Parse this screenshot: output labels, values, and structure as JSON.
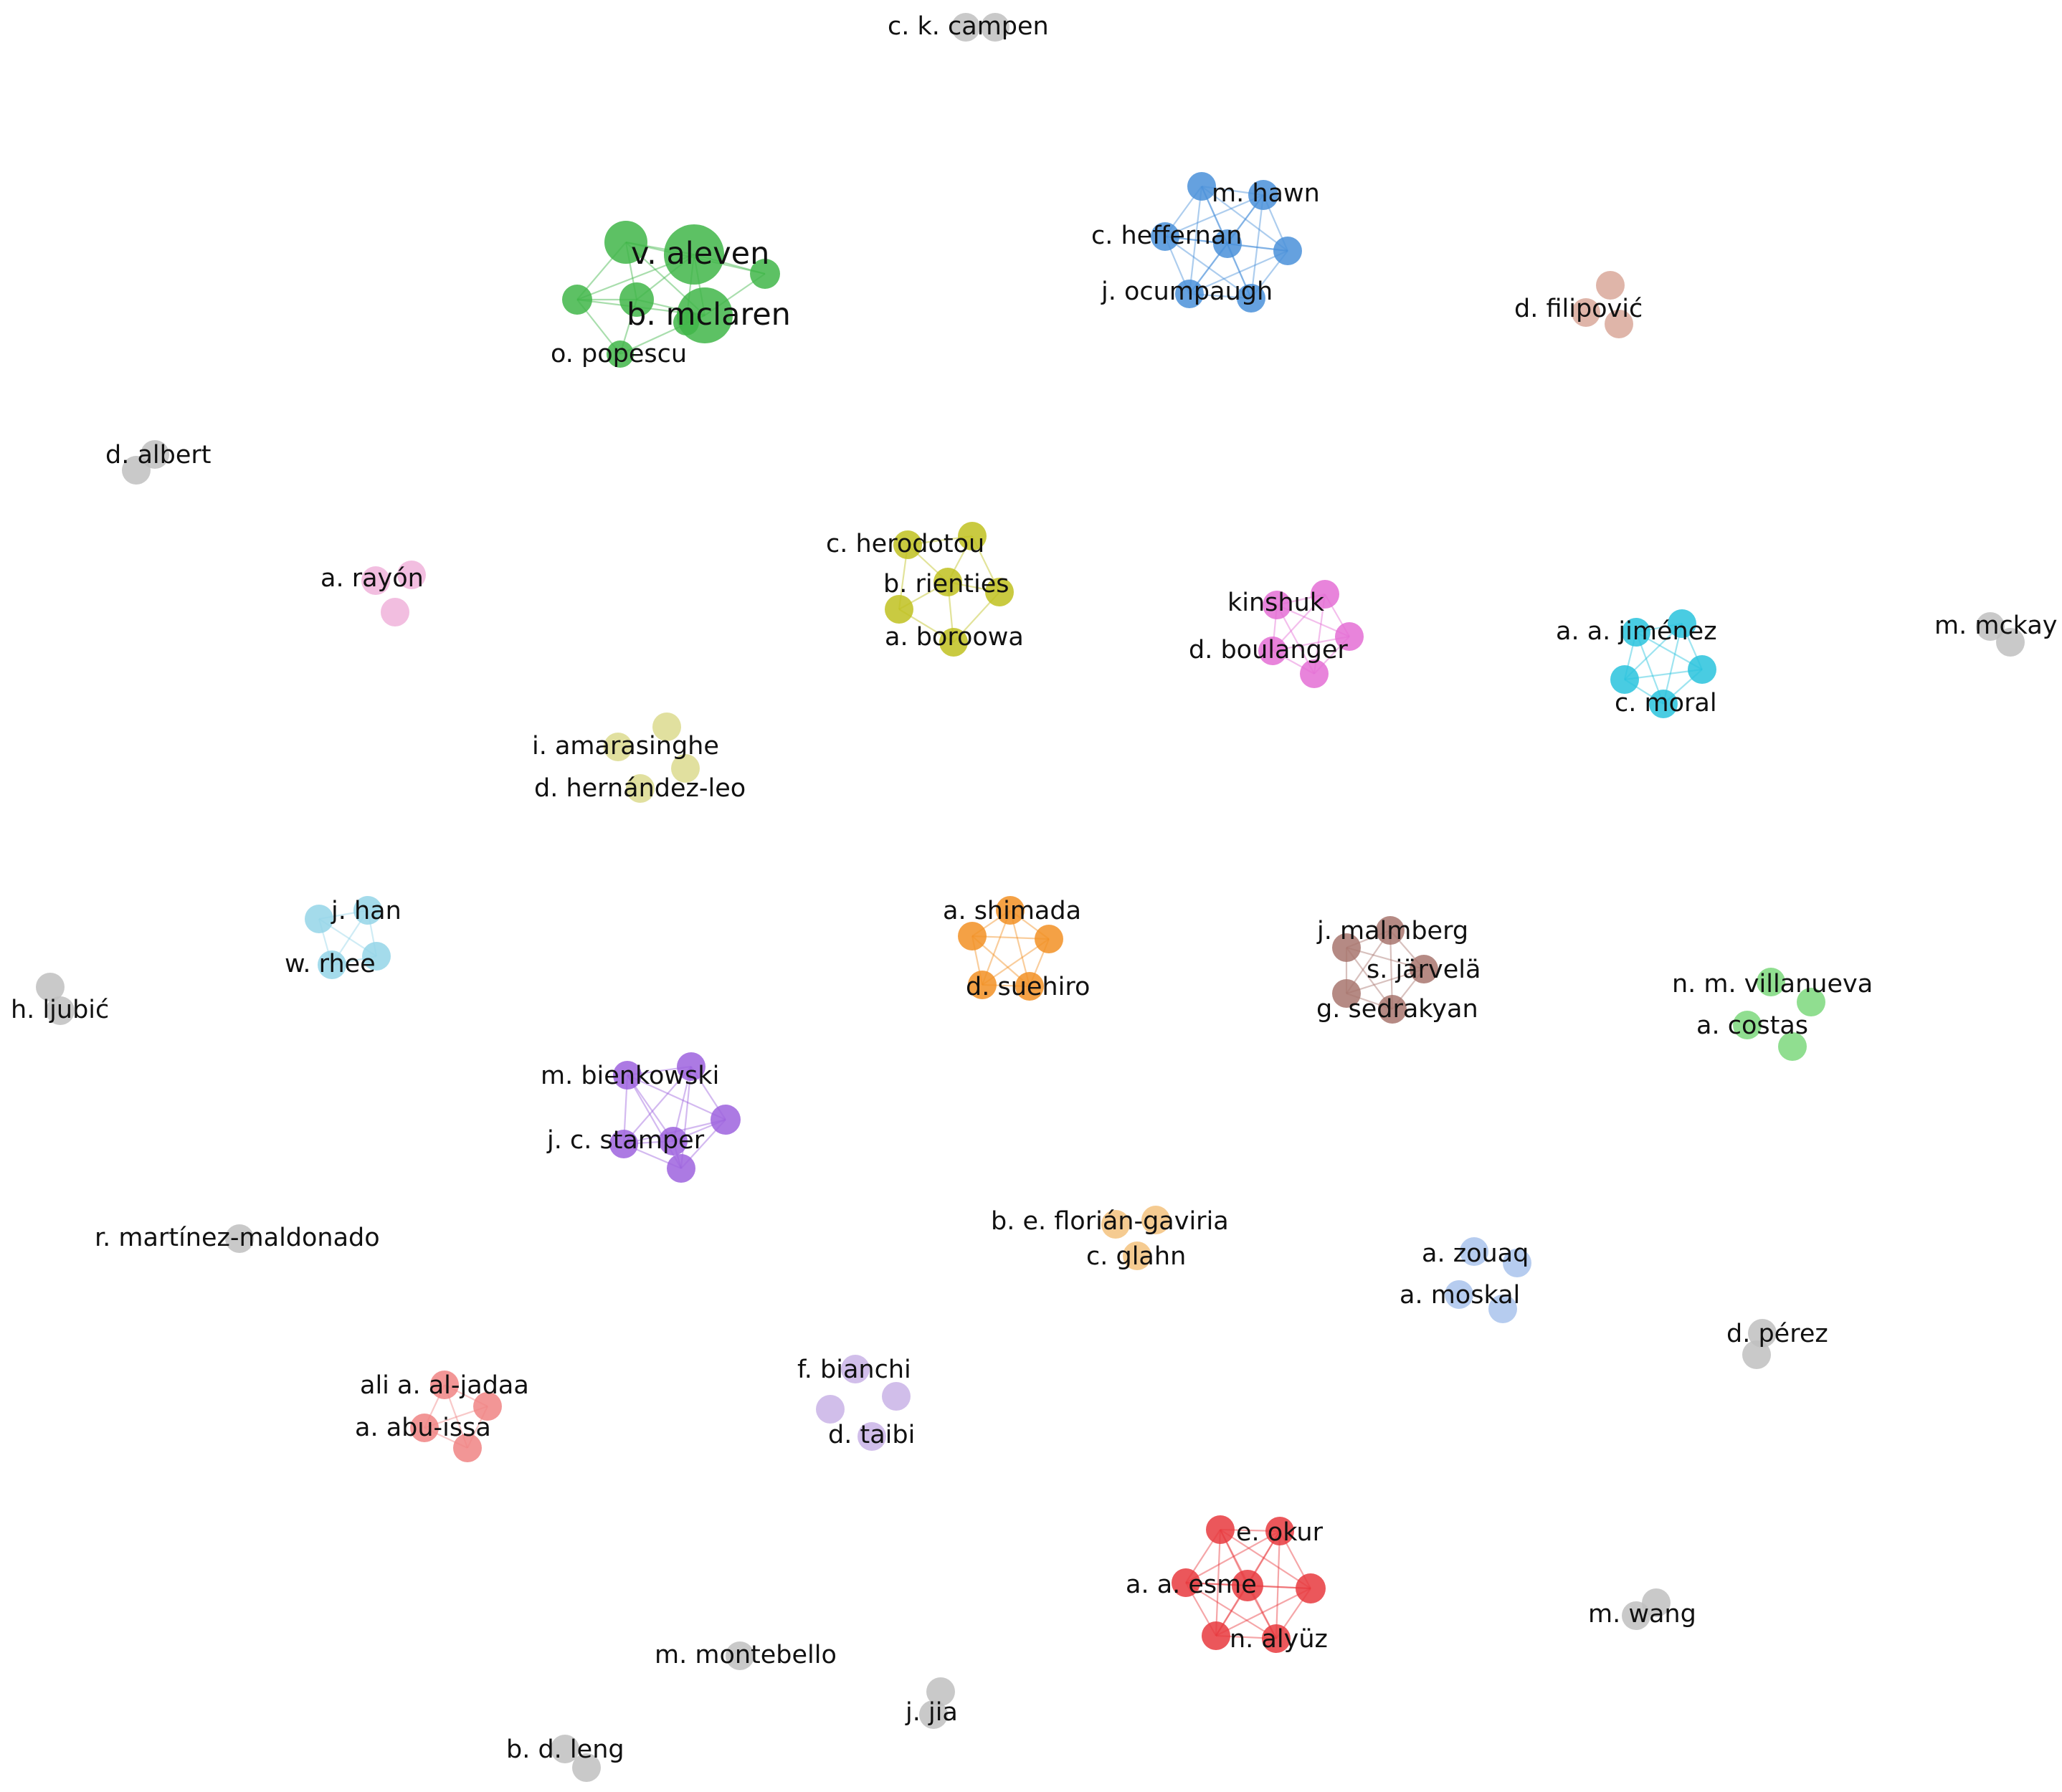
{
  "network": {
    "colors": {
      "green": "#41B649",
      "blue": "#4A90D9",
      "peach": "#D9A89A",
      "olive": "#BFC120",
      "pink": "#E46FD5",
      "cyan": "#29C3DD",
      "light_pink": "#F0B3DA",
      "pale_yellow": "#DCDB8E",
      "light_blue": "#94D5E8",
      "orange": "#F29124",
      "brown": "#A8766F",
      "light_green": "#7DD87C",
      "purple": "#9E63DE",
      "light_orange": "#F3C27E",
      "periwinkle": "#A9C3EC",
      "salmon": "#F08484",
      "lavender": "#C9B3E6",
      "red": "#E8393E",
      "gray": "#BFBFBF"
    },
    "clusters": [
      {
        "id": "green",
        "color_key": "green",
        "authors": [
          "v. aleven",
          "b. mclaren",
          "o. popescu"
        ]
      },
      {
        "id": "blue",
        "color_key": "blue",
        "authors": [
          "m. hawn",
          "c. heffernan",
          "j. ocumpaugh"
        ]
      },
      {
        "id": "peach",
        "color_key": "peach",
        "authors": [
          "d. filipović"
        ]
      },
      {
        "id": "olive",
        "color_key": "olive",
        "authors": [
          "c. herodotou",
          "b. rienties",
          "a. boroowa"
        ]
      },
      {
        "id": "pink",
        "color_key": "pink",
        "authors": [
          "kinshuk",
          "d. boulanger"
        ]
      },
      {
        "id": "cyan",
        "color_key": "cyan",
        "authors": [
          "a. a. jiménez",
          "c. moral"
        ]
      },
      {
        "id": "light_pink",
        "color_key": "light_pink",
        "authors": [
          "a. rayón"
        ]
      },
      {
        "id": "pale_yellow",
        "color_key": "pale_yellow",
        "authors": [
          "i. amarasinghe",
          "d. hernández-leo"
        ]
      },
      {
        "id": "light_blue",
        "color_key": "light_blue",
        "authors": [
          "j. han",
          "w. rhee"
        ]
      },
      {
        "id": "orange",
        "color_key": "orange",
        "authors": [
          "a. shimada",
          "d. suehiro"
        ]
      },
      {
        "id": "brown",
        "color_key": "brown",
        "authors": [
          "j. malmberg",
          "s. järvelä",
          "g. sedrakyan"
        ]
      },
      {
        "id": "light_green",
        "color_key": "light_green",
        "authors": [
          "n. m. villanueva",
          "a. costas"
        ]
      },
      {
        "id": "purple",
        "color_key": "purple",
        "authors": [
          "m. bienkowski",
          "j. c. stamper"
        ]
      },
      {
        "id": "light_orange",
        "color_key": "light_orange",
        "authors": [
          "b. e. florián-gaviria",
          "c. glahn"
        ]
      },
      {
        "id": "periwinkle",
        "color_key": "periwinkle",
        "authors": [
          "a. zouaq",
          "a. moskal"
        ]
      },
      {
        "id": "salmon",
        "color_key": "salmon",
        "authors": [
          "ali a. al-jadaa",
          "a. abu-issa"
        ]
      },
      {
        "id": "lavender",
        "color_key": "lavender",
        "authors": [
          "f. bianchi",
          "d. taibi"
        ]
      },
      {
        "id": "red",
        "color_key": "red",
        "authors": [
          "e. okur",
          "a. a. esme",
          "n. alyüz"
        ]
      },
      {
        "id": "gray",
        "color_key": "gray",
        "authors": [
          "c. k. campen",
          "d. albert",
          "m. mckay",
          "h. ljubić",
          "r. martínez-maldonado",
          "d. pérez",
          "m. wang",
          "m. montebello",
          "j. jia",
          "b. d. leng"
        ]
      }
    ]
  }
}
